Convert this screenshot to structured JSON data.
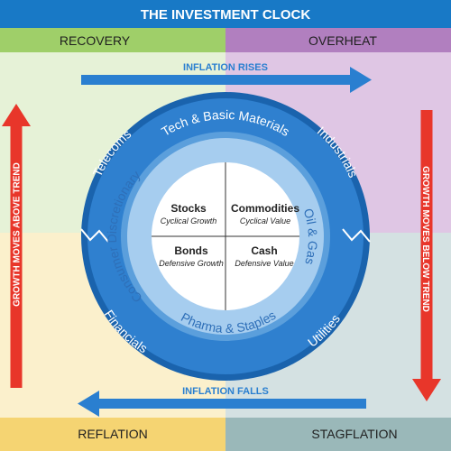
{
  "title": "THE INVESTMENT CLOCK",
  "phases": {
    "recovery": "RECOVERY",
    "overheat": "OVERHEAT",
    "reflation": "REFLATION",
    "stagflation": "STAGFLATION"
  },
  "arrows": {
    "top": "INFLATION RISES",
    "bottom": "INFLATION FALLS",
    "left": "GROWTH MOVES ABOVE TREND",
    "right": "GROWTH MOVES BELOW TREND"
  },
  "assets": {
    "top_left": {
      "name": "Stocks",
      "sub": "Cyclical Growth"
    },
    "top_right": {
      "name": "Commodities",
      "sub": "Cyclical Value"
    },
    "bottom_left": {
      "name": "Bonds",
      "sub": "Defensive Growth"
    },
    "bottom_right": {
      "name": "Cash",
      "sub": "Defensive Value"
    }
  },
  "outer_sectors": {
    "top": "Tech & Basic Materials",
    "top_left": "Telecoms",
    "top_right": "Industrials",
    "bottom_left": "Financials",
    "bottom_right": "Utilities"
  },
  "inner_sectors": {
    "left": "Consumer Discretionary",
    "right": "Oil & Gas",
    "bottom": "Pharma & Staples"
  },
  "colors": {
    "title_bar": "#1879c6",
    "recovery_bar": "#9fcf69",
    "overheat_bar": "#b17fbf",
    "reflation_bar": "#f5d472",
    "stagflation_bar": "#9ab8b9",
    "recovery_bg": "#e6f2d7",
    "overheat_bg": "#dfc6e4",
    "reflation_bg": "#fbf0cc",
    "stagflation_bg": "#d4e1e2",
    "red_arrow": "#e8362a",
    "blue_arrow": "#2a7fd0",
    "ring_outer": "#1d6fbf",
    "ring_inner": "#9ec9ec"
  }
}
